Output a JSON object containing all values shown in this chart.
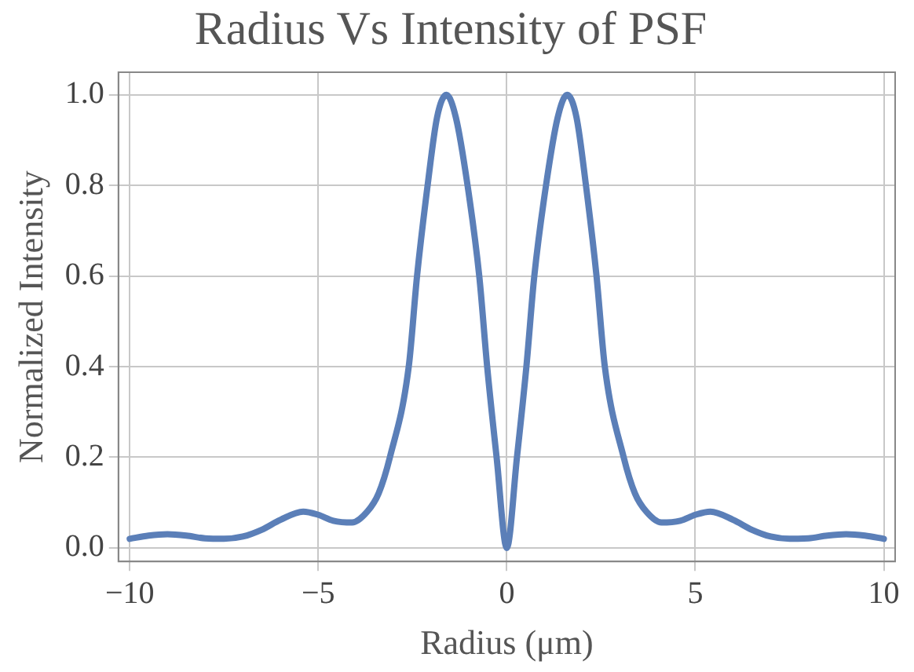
{
  "chart_data": {
    "type": "line",
    "title": "Radius Vs Intensity of PSF",
    "xlabel": "Radius (μm)",
    "ylabel": "Normalized Intensity",
    "x": [
      -10,
      -9.5,
      -9,
      -8.5,
      -8,
      -7.5,
      -7,
      -6.5,
      -6,
      -5.4,
      -5,
      -4.6,
      -4.1,
      -3.7,
      -3.4,
      -3.1,
      -2.6,
      -2.38,
      -2.1,
      -1.85,
      -1.6,
      -1.35,
      -1.04,
      -0.73,
      -0.52,
      -0.27,
      0,
      0.27,
      0.52,
      0.73,
      1.04,
      1.35,
      1.6,
      1.85,
      2.1,
      2.38,
      2.6,
      3.1,
      3.4,
      3.7,
      4.1,
      4.6,
      5,
      5.4,
      6,
      6.5,
      7,
      7.5,
      8,
      8.5,
      9,
      9.5,
      10
    ],
    "series": [
      {
        "color": "#5b7fb8",
        "values": [
          0.02,
          0.027,
          0.03,
          0.027,
          0.021,
          0.02,
          0.025,
          0.04,
          0.062,
          0.08,
          0.073,
          0.06,
          0.056,
          0.08,
          0.12,
          0.2,
          0.4,
          0.6,
          0.8,
          0.95,
          1.0,
          0.95,
          0.8,
          0.6,
          0.4,
          0.2,
          0.0,
          0.2,
          0.4,
          0.6,
          0.8,
          0.95,
          1.0,
          0.95,
          0.8,
          0.6,
          0.4,
          0.2,
          0.12,
          0.08,
          0.056,
          0.06,
          0.073,
          0.08,
          0.062,
          0.04,
          0.025,
          0.02,
          0.021,
          0.027,
          0.03,
          0.027,
          0.02
        ]
      }
    ],
    "xlim": [
      -10.3,
      10.3
    ],
    "xticks": [
      {
        "value": -10,
        "label": "−10"
      },
      {
        "value": -5,
        "label": "−5"
      },
      0,
      5,
      10
    ],
    "ylim": [
      -0.03,
      1.05
    ],
    "yticks": [
      {
        "value": 0,
        "label": "0.0"
      },
      0.2,
      0.4,
      0.6,
      0.8,
      {
        "value": 1,
        "label": "1.0"
      }
    ],
    "grid": true,
    "legend": false,
    "marker": "none",
    "line_style": "solid"
  }
}
